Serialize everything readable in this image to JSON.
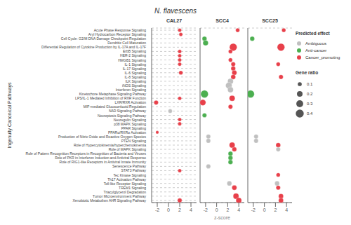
{
  "chart_data": {
    "type": "scatter",
    "title": "N. flavescens",
    "ylabel": "Ingenuity Canonical Pathways",
    "xlabel": "z-score",
    "categories": [
      "Acute Phase Response Signaling",
      "Aryl Hydrocarbon Receptor Signaling",
      "Cell Cycle: G2/M DNA Damage Checkpoint Regulation",
      "Dendritic Cell Maturation",
      "Differential Regulation of Cytokine Production by IL-17A and IL-17F",
      "ErbB Signaling",
      "HER-2 Signaling",
      "HMGB1 Signaling",
      "IL-1 Signaling",
      "IL-17 Signaling",
      "IL-6 Signaling",
      "IL-8 Signaling",
      "ILK Signaling",
      "iNOS Signaling",
      "Interferon Signaling",
      "Kinetochore Metaphase Signaling Pathway",
      "LPS/IL-1 Mediated Inhibition of RXR Function",
      "LXR/RXR Activation",
      "MIF-mediated Glucocorticoid Regulation",
      "NAD Signaling Pathway",
      "Necroptosis Signaling Pathway",
      "Neuregulin Signaling",
      "p38 MAPK Signaling",
      "PPAR Signaling",
      "PPARα/RXRα Activation",
      "Production of Nitric Oxide and Reactive Oxygen Species",
      "PTEN Signaling",
      "Role of Hypercytokinemia/hyperchemokinemia",
      "Role of MAPK Signaling",
      "Role of Pattern Recognition Receptors in Recognition of Bacteria and Viruses",
      "Role of PKR in Interferon Induction and Antiviral Response",
      "Role of RIG1-like Receptors in Antiviral Innate Immunity",
      "Senescence Pathway",
      "STAT3 Pathway",
      "Tec Kinase Signaling",
      "Th17 Activation Pathway",
      "Toll-like Receptor Signaling",
      "TREM1 Signaling",
      "Triacylglycerol Degradation",
      "Tumor Microenvironment Pathway",
      "Xenobiotic Metabolism AHR Signaling Pathway"
    ],
    "series": [
      {
        "name": "CAL27",
        "values": [
          2.0,
          2.2,
          null,
          null,
          null,
          2.0,
          2.0,
          2.0,
          2.0,
          null,
          2.2,
          null,
          null,
          null,
          null,
          null,
          2.0,
          -2.2,
          null,
          0.3,
          null,
          2.0,
          2.0,
          null,
          -2.0,
          null,
          null,
          null,
          null,
          null,
          null,
          null,
          null,
          2.0,
          null,
          null,
          null,
          null,
          null,
          null,
          2.0
        ],
        "sizes": [
          0.08,
          0.08,
          null,
          null,
          null,
          0.08,
          0.08,
          0.08,
          0.08,
          null,
          0.1,
          null,
          null,
          null,
          null,
          null,
          0.08,
          0.12,
          null,
          0.1,
          null,
          0.08,
          0.08,
          null,
          0.06,
          null,
          null,
          null,
          null,
          null,
          null,
          null,
          null,
          0.08,
          null,
          null,
          null,
          null,
          null,
          null,
          0.12
        ],
        "colors": [
          "#e8404a",
          "#e8404a",
          null,
          null,
          null,
          "#e8404a",
          "#e8404a",
          "#e8404a",
          "#e8404a",
          null,
          "#e8404a",
          null,
          null,
          null,
          null,
          null,
          "#e8404a",
          "#e8404a",
          null,
          "#c0c0c0",
          null,
          "#e8404a",
          "#e8404a",
          null,
          "#e8404a",
          null,
          null,
          null,
          null,
          null,
          null,
          null,
          null,
          "#e8404a",
          null,
          null,
          null,
          null,
          null,
          null,
          "#e8404a"
        ]
      },
      {
        "name": "SCC4",
        "values": [
          3.8,
          null,
          -2.2,
          -2.0,
          3.0,
          2.5,
          null,
          2.5,
          3.0,
          3.0,
          3.2,
          3.0,
          2.5,
          2.2,
          2.5,
          -2.2,
          2.8,
          -2.5,
          2.5,
          null,
          -2.2,
          null,
          null,
          null,
          null,
          -1.5,
          -1.5,
          2.8,
          3.2,
          2.5,
          2.5,
          2.5,
          -1.5,
          null,
          null,
          null,
          2.3,
          3.2,
          null,
          3.5,
          4.0
        ],
        "sizes": [
          0.1,
          null,
          0.13,
          0.18,
          0.35,
          0.1,
          null,
          0.1,
          0.12,
          0.13,
          0.15,
          0.14,
          0.2,
          0.25,
          0.2,
          0.35,
          0.2,
          0.22,
          0.12,
          null,
          0.12,
          null,
          null,
          null,
          null,
          0.12,
          0.12,
          0.2,
          0.13,
          0.13,
          0.13,
          0.13,
          0.12,
          null,
          null,
          null,
          0.14,
          0.15,
          null,
          0.2,
          0.2
        ],
        "colors": [
          "#e8404a",
          null,
          "#4caf50",
          "#4caf50",
          "#e8404a",
          "#e8404a",
          null,
          "#e8404a",
          "#e8404a",
          "#e8404a",
          "#e8404a",
          "#e8404a",
          "#c0c0c0",
          "#c0c0c0",
          "#c0c0c0",
          "#4caf50",
          "#e8404a",
          "#e8404a",
          "#e8404a",
          null,
          "#4caf50",
          null,
          null,
          null,
          null,
          "#c0c0c0",
          "#c0c0c0",
          "#e8404a",
          "#e8404a",
          "#4caf50",
          "#4caf50",
          "#4caf50",
          "#c0c0c0",
          null,
          null,
          null,
          "#c0c0c0",
          "#e8404a",
          null,
          "#e8404a",
          "#e8404a"
        ]
      },
      {
        "name": "SCC25",
        "values": [
          3.5,
          null,
          -2.2,
          null,
          3.0,
          null,
          null,
          null,
          2.5,
          null,
          null,
          3.0,
          null,
          null,
          null,
          -2.5,
          null,
          null,
          null,
          null,
          null,
          null,
          null,
          null,
          null,
          -1.5,
          -1.5,
          2.5,
          2.5,
          null,
          null,
          null,
          null,
          null,
          2.5,
          null,
          2.3,
          2.5,
          null,
          3.0,
          3.0
        ],
        "sizes": [
          0.1,
          null,
          0.13,
          null,
          0.35,
          null,
          null,
          null,
          0.1,
          null,
          null,
          0.12,
          null,
          null,
          null,
          0.35,
          null,
          null,
          null,
          null,
          null,
          null,
          null,
          null,
          null,
          0.12,
          0.12,
          0.14,
          0.12,
          null,
          null,
          null,
          null,
          null,
          0.1,
          null,
          0.14,
          0.12,
          null,
          0.15,
          0.15
        ],
        "colors": [
          "#e8404a",
          null,
          "#4caf50",
          null,
          "#e8404a",
          null,
          null,
          null,
          "#e8404a",
          null,
          null,
          "#e8404a",
          null,
          null,
          null,
          "#4caf50",
          null,
          null,
          null,
          null,
          null,
          null,
          null,
          null,
          null,
          "#c0c0c0",
          "#c0c0c0",
          "#e8404a",
          "#c0c0c0",
          null,
          null,
          null,
          null,
          null,
          "#e8404a",
          null,
          "#c0c0c0",
          "#e8404a",
          null,
          "#e8404a",
          "#e8404a"
        ]
      }
    ],
    "xlim": [
      -3,
      5
    ],
    "xticks": [
      -2,
      0,
      2,
      4
    ],
    "grid": true,
    "color_legend": {
      "title": "Predicted effect",
      "labels": [
        "Ambiguous",
        "Anti-cancer",
        "Cancer_promoting"
      ],
      "colors": [
        "#c0c0c0",
        "#4caf50",
        "#e8404a"
      ]
    },
    "size_legend": {
      "title": "Gene ratio",
      "values": [
        0.1,
        0.2,
        0.3,
        0.4
      ],
      "color": "#555555"
    }
  }
}
